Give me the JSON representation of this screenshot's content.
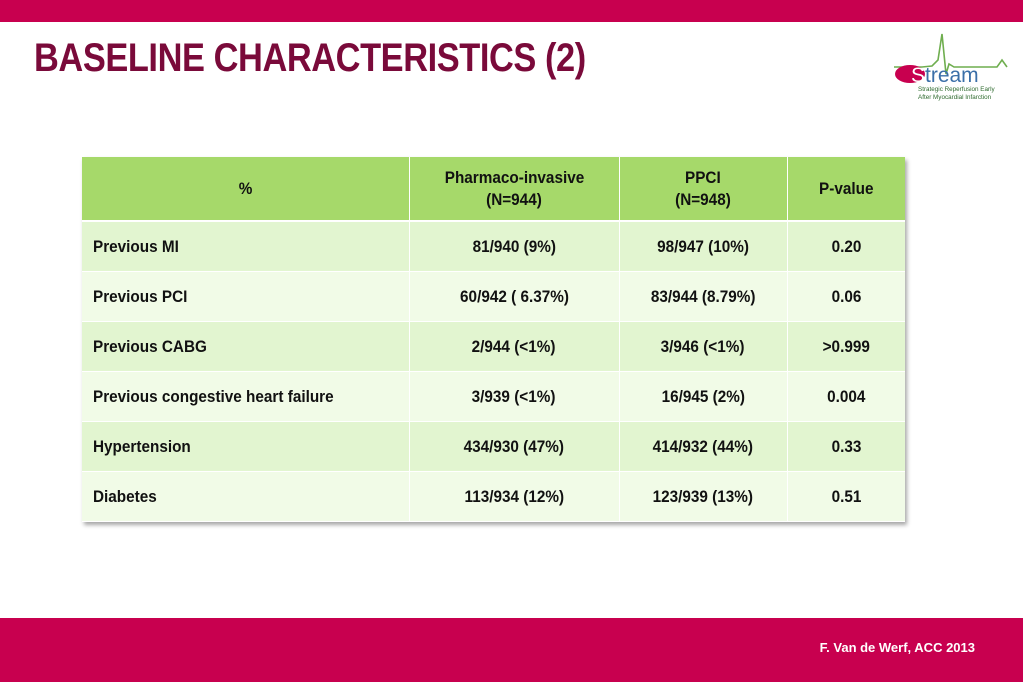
{
  "title": "BASELINE CHARACTERISTICS (2)",
  "logo": {
    "name": "Stream",
    "tagline_line1": "Strategic Reperfusion Early",
    "tagline_line2": "After Myocardial Infarction"
  },
  "table": {
    "headers": [
      {
        "line1": "%",
        "line2": ""
      },
      {
        "line1": "Pharmaco-invasive",
        "line2": "(N=944)"
      },
      {
        "line1": "PPCI",
        "line2": "(N=948)"
      },
      {
        "line1": "P-value",
        "line2": ""
      }
    ],
    "rows": [
      {
        "label": "Previous MI",
        "pi": "81/940 (9%)",
        "ppci": "98/947 (10%)",
        "p": "0.20"
      },
      {
        "label": "Previous PCI",
        "pi": "60/942 ( 6.37%)",
        "ppci": "83/944 (8.79%)",
        "p": "0.06"
      },
      {
        "label": "Previous CABG",
        "pi": "2/944 (<1%)",
        "ppci": "3/946 (<1%)",
        "p": ">0.999"
      },
      {
        "label": "Previous congestive heart failure",
        "pi": "3/939 (<1%)",
        "ppci": "16/945 (2%)",
        "p": "0.004"
      },
      {
        "label": "Hypertension",
        "pi": "434/930 (47%)",
        "ppci": "414/932 (44%)",
        "p": "0.33"
      },
      {
        "label": "Diabetes",
        "pi": "113/934 (12%)",
        "ppci": "123/939 (13%)",
        "p": "0.51"
      }
    ]
  },
  "footer": "F. Van de Werf, ACC 2013",
  "colors": {
    "brand_bar": "#c8004f",
    "title": "#7a0a3a",
    "header_green": "#a6d96a",
    "row_dark": "#e2f5d0",
    "row_light": "#f1fbe7"
  }
}
